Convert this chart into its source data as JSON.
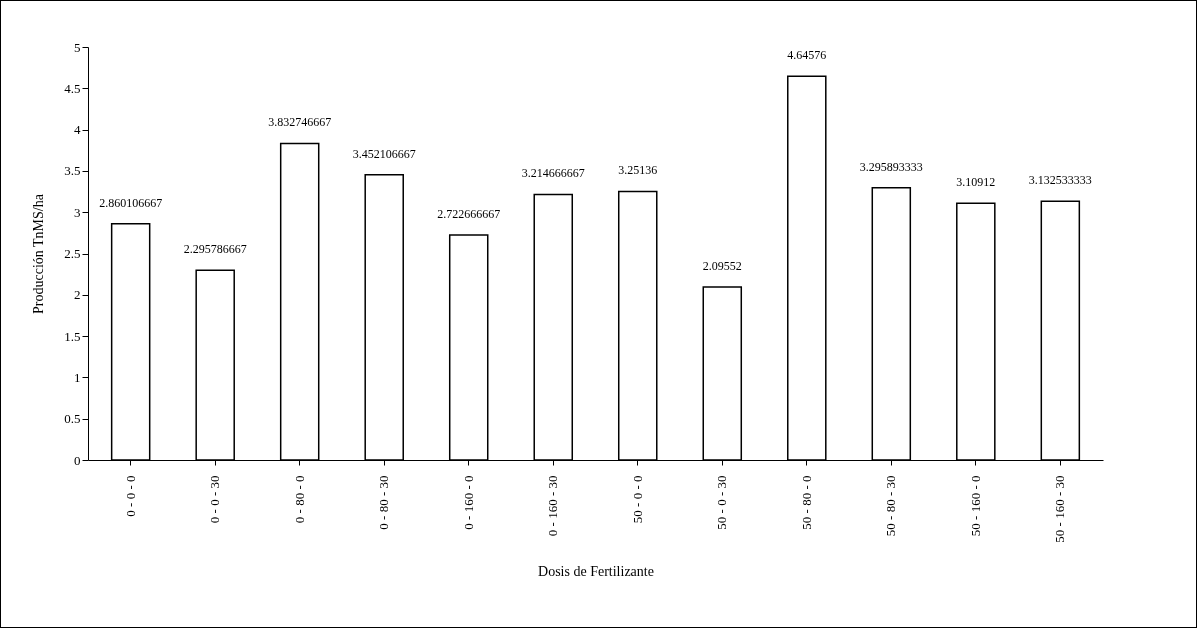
{
  "chart_data": {
    "type": "bar",
    "xlabel": "Dosis de Fertilizante",
    "ylabel": "Producción TnMS/ha",
    "categories": [
      "0 - 0 - 0",
      "0 - 0 - 30",
      "0 - 80 - 0",
      "0 - 80 - 30",
      "0 - 160 - 0",
      "0 - 160 - 30",
      "50 - 0 - 0",
      "50 - 0 - 30",
      "50 - 80 - 0",
      "50 - 80 - 30",
      "50 - 160 - 0",
      "50 - 160 - 30"
    ],
    "values": [
      2.860106667,
      2.295786667,
      3.832746667,
      3.452106667,
      2.722666667,
      3.214666667,
      3.25136,
      2.09552,
      4.64576,
      3.295893333,
      3.10912,
      3.132533333
    ],
    "color": "#ffffff",
    "ylim": [
      0,
      5
    ],
    "yticks": [
      0,
      0.5,
      1,
      1.5,
      2,
      2.5,
      3,
      3.5,
      4,
      4.5,
      5
    ],
    "grid": false,
    "data_labels": true
  }
}
